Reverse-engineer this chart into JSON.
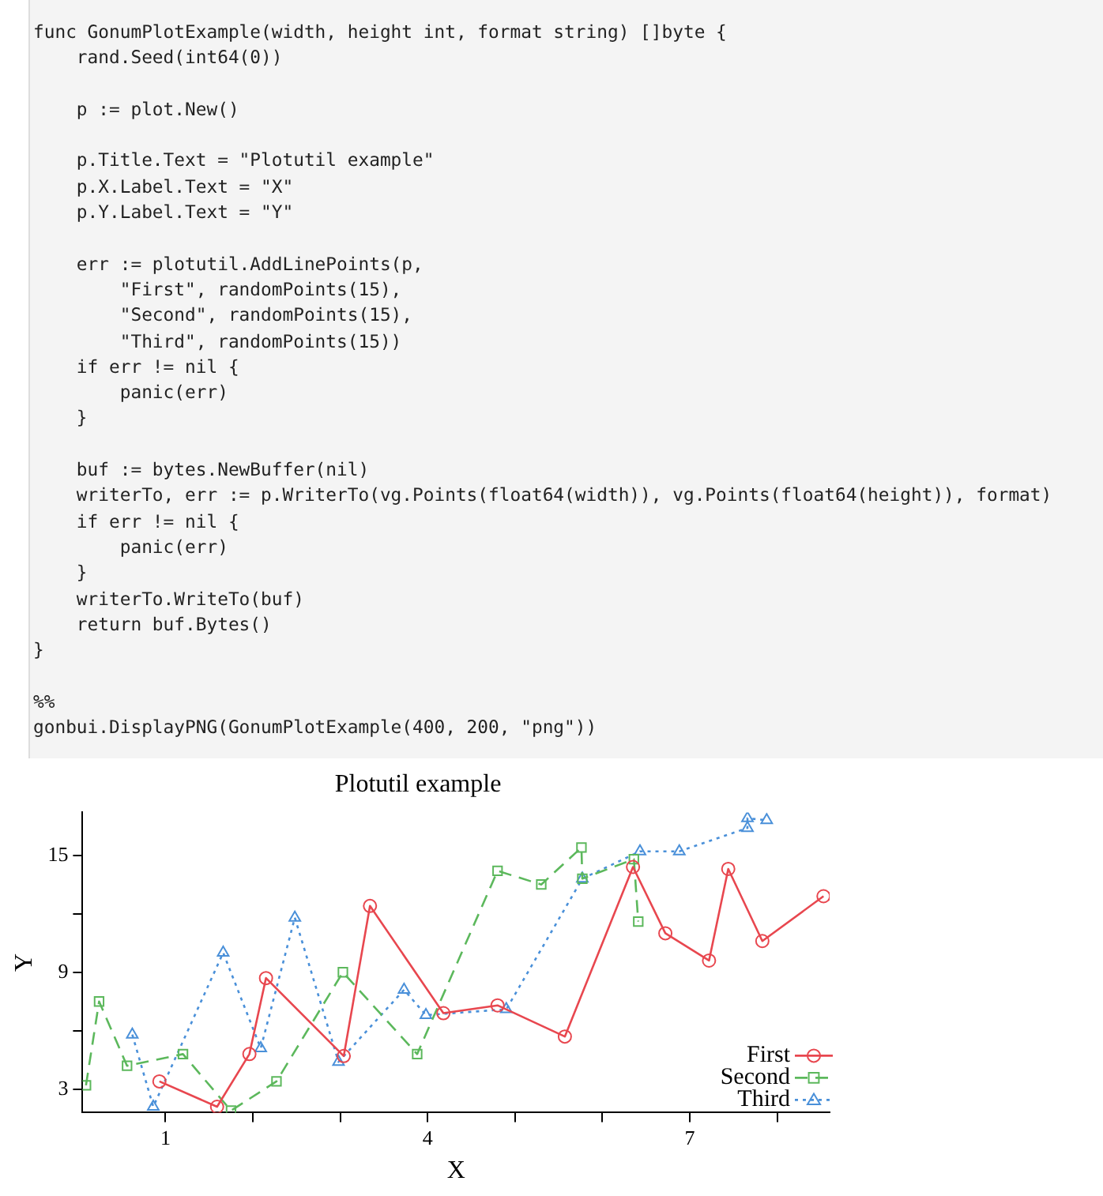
{
  "chart_data": {
    "type": "line",
    "title": "Plotutil example",
    "xlabel": "X",
    "ylabel": "Y",
    "annotations": [
      "func GonumPlotExample(width, height int, format string) []byte {\n    rand.Seed(int64(0))\n\n    p := plot.New()\n\n    p.Title.Text = \"Plotutil example\"\n    p.X.Label.Text = \"X\"\n    p.Y.Label.Text = \"Y\"\n\n    err := plotutil.AddLinePoints(p,\n        \"First\", randomPoints(15),\n        \"Second\", randomPoints(15),\n        \"Third\", randomPoints(15))\n    if err != nil {\n        panic(err)\n    }\n\n    buf := bytes.NewBuffer(nil)\n    writerTo, err := p.WriterTo(vg.Points(float64(width)), vg.Points(float64(height)), format)\n    if err != nil {\n        panic(err)\n    }\n    writerTo.WriteTo(buf)\n    return buf.Bytes()\n}\n\n%%\ngonbui.DisplayPNG(GonumPlotExample(400, 200, \"png\"))"
    ],
    "series": [
      {
        "name": "First",
        "color": "#e8474f",
        "marker": "circle",
        "line_style": "solid",
        "x": [
          0.93,
          1.59,
          1.96,
          2.15,
          3.04,
          3.34,
          4.18,
          4.8,
          5.57,
          6.35,
          6.72,
          7.22,
          7.44,
          7.83,
          8.53
        ],
        "values": [
          3.4,
          2.1,
          4.8,
          8.7,
          4.7,
          12.4,
          6.9,
          7.3,
          5.7,
          14.4,
          11.0,
          9.6,
          14.3,
          10.6,
          12.9
        ]
      },
      {
        "name": "Second",
        "color": "#5cb85c",
        "marker": "square",
        "line_style": "dashed",
        "x": [
          0.09,
          0.24,
          0.56,
          1.2,
          1.75,
          2.27,
          3.03,
          3.88,
          4.8,
          5.3,
          5.76,
          5.77,
          6.36,
          6.41
        ],
        "values": [
          3.2,
          7.5,
          4.2,
          4.8,
          1.9,
          3.4,
          9.0,
          4.8,
          14.2,
          13.5,
          15.4,
          13.8,
          14.8,
          11.6
        ]
      },
      {
        "name": "Third",
        "color": "#4a90d9",
        "marker": "triangle",
        "line_style": "dotted",
        "x": [
          0.62,
          0.86,
          1.66,
          2.09,
          2.48,
          2.98,
          3.73,
          3.98,
          4.9,
          5.77,
          6.43,
          6.88,
          7.66,
          7.66,
          7.88
        ],
        "values": [
          5.8,
          2.1,
          10.0,
          5.1,
          11.8,
          4.4,
          8.1,
          6.8,
          7.1,
          13.8,
          15.2,
          15.2,
          16.4,
          16.9,
          16.8
        ]
      }
    ],
    "xlim": [
      0.05,
      8.6
    ],
    "ylim": [
      1.8,
      17.2
    ],
    "xticks": [
      1,
      {
        "value": 2,
        "label": null
      },
      {
        "value": 3,
        "label": null
      },
      4,
      {
        "value": 5,
        "label": null
      },
      {
        "value": 6,
        "label": null
      },
      7,
      {
        "value": 8,
        "label": null
      }
    ],
    "yticks": [
      3,
      {
        "value": 6,
        "label": null
      },
      9,
      {
        "value": 12,
        "label": null
      },
      15
    ],
    "legend": "bottom right"
  }
}
